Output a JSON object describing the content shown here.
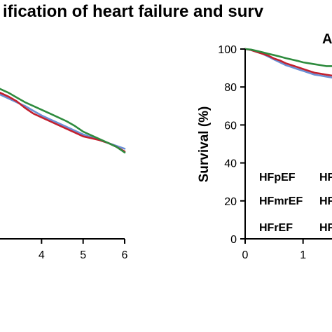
{
  "figure": {
    "title": "ification of heart failure and surv"
  },
  "chart_data": [
    {
      "type": "line",
      "panel": "left",
      "title": "",
      "xlabel": "",
      "ylabel": "",
      "x_ticks": [
        "4",
        "5",
        "6"
      ],
      "xlim": [
        3.0,
        6.0
      ],
      "ylim": [
        0,
        100
      ],
      "series": [
        {
          "color": "#6a8fd4",
          "x": [
            3.0,
            3.2,
            3.4,
            3.6,
            3.8,
            4.0,
            4.2,
            4.4,
            4.6,
            4.8,
            5.0,
            5.2,
            5.4,
            5.6,
            5.8,
            6.0
          ],
          "y": [
            76,
            74,
            72,
            70,
            67.5,
            65,
            63,
            61,
            59,
            57,
            55,
            53.5,
            52,
            50.5,
            49,
            47.5
          ]
        },
        {
          "color": "#c2202f",
          "x": [
            3.0,
            3.2,
            3.4,
            3.6,
            3.8,
            4.0,
            4.2,
            4.4,
            4.6,
            4.8,
            5.0,
            5.2,
            5.4,
            5.6,
            5.8,
            6.0
          ],
          "y": [
            77,
            75,
            72.5,
            69,
            66,
            64,
            62,
            60,
            58,
            56,
            54,
            53,
            52,
            50.5,
            48.5,
            46
          ]
        },
        {
          "color": "#2e8b3e",
          "x": [
            3.0,
            3.2,
            3.4,
            3.6,
            3.8,
            4.0,
            4.2,
            4.4,
            4.6,
            4.8,
            5.0,
            5.2,
            5.4,
            5.6,
            5.8,
            6.0
          ],
          "y": [
            79,
            77,
            74.5,
            72,
            70,
            68,
            66,
            64,
            62,
            59.5,
            56.5,
            54.5,
            52.5,
            50.5,
            48.5,
            45.5
          ]
        }
      ]
    },
    {
      "type": "line",
      "panel": "right",
      "title": "A",
      "xlabel": "",
      "ylabel": "Survival (%)",
      "x_ticks": [
        "0",
        "1"
      ],
      "y_ticks": [
        "0",
        "20",
        "40",
        "60",
        "80",
        "100"
      ],
      "xlim": [
        0,
        1.5
      ],
      "ylim": [
        0,
        100
      ],
      "legend": [
        "HFpEF",
        "HFmrEF",
        "HFrEF"
      ],
      "legend_suffix": [
        "HF",
        "HF",
        "HF"
      ],
      "series": [
        {
          "name": "HFpEF",
          "color": "#6a8fd4",
          "x": [
            0,
            0.1,
            0.2,
            0.3,
            0.4,
            0.5,
            0.6,
            0.7,
            0.8,
            0.9,
            1.0,
            1.1,
            1.2,
            1.3,
            1.4,
            1.5
          ],
          "y": [
            100,
            99.5,
            98.5,
            97.5,
            96,
            94.5,
            93,
            91.5,
            90.5,
            89.5,
            88.5,
            87.5,
            86.5,
            86,
            85.5,
            85
          ]
        },
        {
          "name": "HFmrEF",
          "color": "#c2202f",
          "x": [
            0,
            0.1,
            0.2,
            0.3,
            0.4,
            0.5,
            0.6,
            0.7,
            0.8,
            0.9,
            1.0,
            1.1,
            1.2,
            1.3,
            1.4,
            1.5
          ],
          "y": [
            100,
            99.5,
            98.5,
            97.5,
            96.5,
            95,
            94,
            92.5,
            91.5,
            90.5,
            89.5,
            88.5,
            87.5,
            87,
            86.5,
            86
          ]
        },
        {
          "name": "HFrEF",
          "color": "#2e8b3e",
          "x": [
            0,
            0.1,
            0.2,
            0.3,
            0.4,
            0.5,
            0.6,
            0.7,
            0.8,
            0.9,
            1.0,
            1.1,
            1.2,
            1.3,
            1.4,
            1.5
          ],
          "y": [
            100,
            99.7,
            99,
            98.3,
            97.5,
            96.8,
            96,
            95.2,
            94.5,
            93.8,
            93,
            92.5,
            92,
            91.5,
            91,
            91
          ]
        }
      ]
    }
  ]
}
